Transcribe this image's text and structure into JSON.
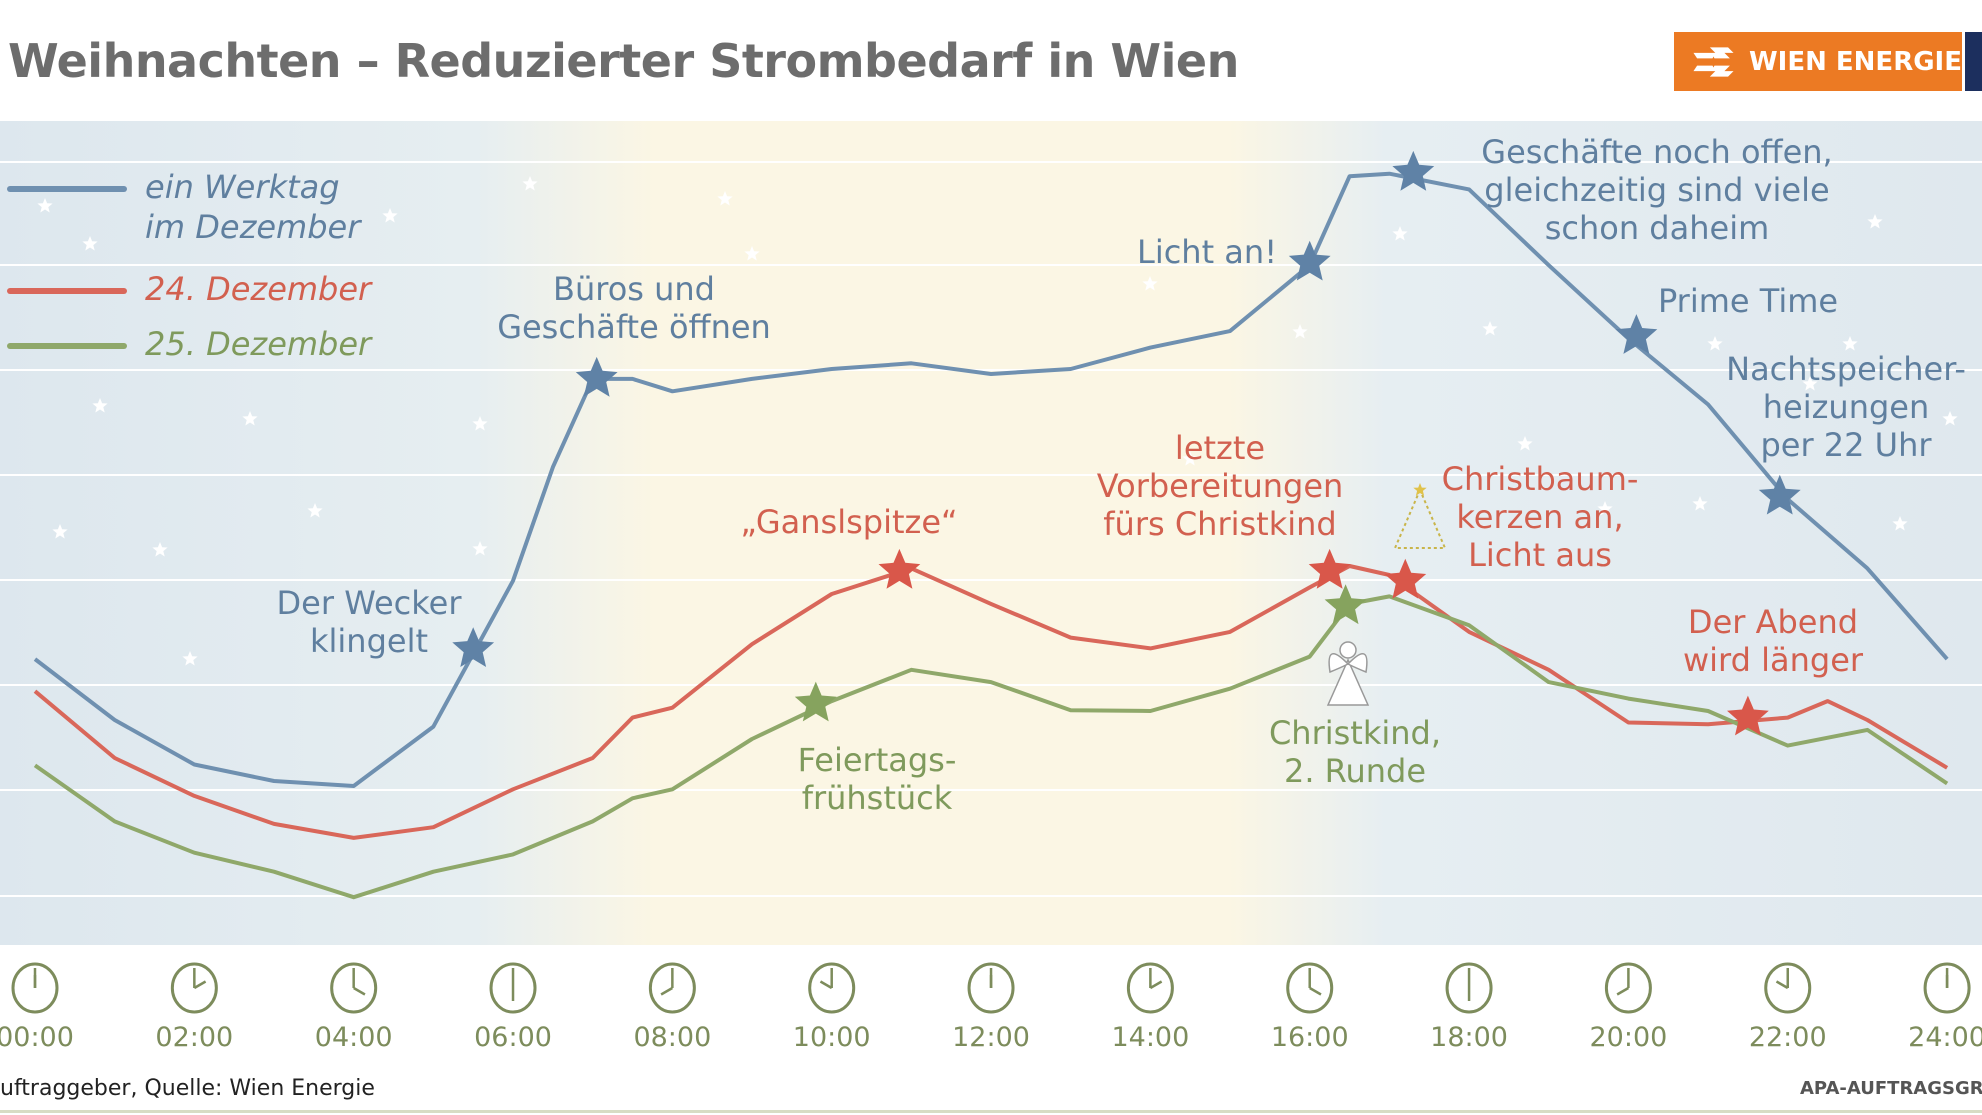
{
  "title": "Weihnachten – Reduzierter Strombedarf in Wien",
  "logo": {
    "text": "WIEN ENERGIE",
    "color": "#ec7a23"
  },
  "footer": {
    "source": "uftraggeber, Quelle: Wien Energie",
    "credit": "APA-AUFTRAGSGRA"
  },
  "colors": {
    "werktag": "#6f90b0",
    "dez24": "#d9675a",
    "dez25": "#8fa86a",
    "clock": "#7d8c5c"
  },
  "chart_data": {
    "type": "line",
    "title": "Weihnachten – Reduzierter Strombedarf in Wien",
    "xlabel": "",
    "ylabel": "",
    "x_ticks": [
      "00:00",
      "02:00",
      "04:00",
      "06:00",
      "08:00",
      "10:00",
      "12:00",
      "14:00",
      "16:00",
      "18:00",
      "20:00",
      "22:00",
      "24:00"
    ],
    "xlim": [
      0,
      24
    ],
    "ylim": [
      0,
      100
    ],
    "y_note_unlabeled": true,
    "grid": "horizontal",
    "legend_position": "top-left",
    "series": [
      {
        "name": "ein Werktag im Dezember",
        "name_lines": [
          "ein Werktag",
          "im Dezember"
        ],
        "color": "#6f90b0",
        "x": [
          0,
          1,
          2,
          3,
          4,
          5,
          6,
          6.5,
          7,
          7.5,
          8,
          9,
          10,
          11,
          12,
          13,
          14,
          15,
          16,
          16.5,
          17,
          18,
          19,
          20,
          21,
          22,
          23,
          24
        ],
        "y": [
          34.7,
          27.3,
          21.9,
          19.9,
          19.3,
          26.5,
          44.2,
          58.0,
          68.7,
          68.7,
          67.2,
          68.7,
          69.9,
          70.6,
          69.3,
          69.9,
          72.5,
          74.5,
          82.5,
          93.3,
          93.6,
          91.7,
          82.5,
          73.6,
          65.6,
          54.1,
          45.7,
          34.7
        ]
      },
      {
        "name": "24. Dezember",
        "name_lines": [
          "24. Dezember"
        ],
        "color": "#d9675a",
        "x": [
          0,
          1,
          2,
          3,
          4,
          5,
          6,
          7,
          7.5,
          8,
          9,
          10,
          11,
          12,
          13,
          14,
          15,
          16,
          16.5,
          17,
          18,
          19,
          20,
          21,
          22,
          22.5,
          23,
          24
        ],
        "y": [
          30.8,
          22.7,
          18.1,
          14.7,
          13.0,
          14.3,
          18.9,
          22.7,
          27.6,
          28.8,
          36.5,
          42.6,
          45.7,
          41.4,
          37.3,
          36.0,
          38.0,
          43.4,
          46.0,
          44.9,
          38.0,
          33.4,
          27.0,
          26.8,
          27.6,
          29.6,
          27.3,
          21.5
        ]
      },
      {
        "name": "25. Dezember",
        "name_lines": [
          "25. Dezember"
        ],
        "color": "#8fa86a",
        "x": [
          0,
          1,
          2,
          3,
          4,
          5,
          6,
          7,
          7.5,
          8,
          9,
          10,
          11,
          12,
          13,
          14,
          15,
          16,
          16.5,
          17,
          18,
          19,
          20,
          21,
          22,
          23,
          24
        ],
        "y": [
          21.8,
          15.0,
          11.2,
          8.9,
          5.8,
          8.9,
          11.0,
          15.0,
          17.8,
          18.9,
          25.0,
          29.6,
          33.4,
          31.9,
          28.5,
          28.4,
          31.1,
          35.0,
          41.4,
          42.3,
          38.8,
          31.9,
          29.9,
          28.4,
          24.2,
          26.1,
          19.6
        ]
      }
    ],
    "annotations": [
      {
        "series": 0,
        "x": 5.5,
        "y": 35.9,
        "lines": [
          "Der Wecker",
          "klingelt"
        ]
      },
      {
        "series": 0,
        "x": 7.05,
        "y": 68.7,
        "lines": [
          "Büros und",
          "Geschäfte öffnen"
        ]
      },
      {
        "series": 0,
        "x": 16.0,
        "y": 82.8,
        "lines": [
          "Licht an!"
        ]
      },
      {
        "series": 0,
        "x": 17.3,
        "y": 93.7,
        "lines": [
          "Geschäfte noch offen,",
          "gleichzeitig sind viele",
          "schon daheim"
        ]
      },
      {
        "series": 0,
        "x": 20.1,
        "y": 73.9,
        "lines": [
          "Prime Time"
        ]
      },
      {
        "series": 0,
        "x": 21.9,
        "y": 54.4,
        "lines": [
          "Nachtspeicher-",
          "heizungen",
          "per 22 Uhr"
        ]
      },
      {
        "series": 1,
        "x": 10.85,
        "y": 45.4,
        "lines": [
          "„Ganslspitze“"
        ]
      },
      {
        "series": 1,
        "x": 16.25,
        "y": 45.4,
        "lines": [
          "letzte",
          "Vorbereitungen",
          "fürs Christkind"
        ]
      },
      {
        "series": 1,
        "x": 17.2,
        "y": 44.2,
        "lines": [
          "Christbaum-",
          "kerzen an,",
          "Licht aus"
        ]
      },
      {
        "series": 1,
        "x": 21.5,
        "y": 27.6,
        "lines": [
          "Der Abend",
          "wird länger"
        ]
      },
      {
        "series": 2,
        "x": 9.8,
        "y": 29.3,
        "lines": [
          "Feiertags-",
          "frühstück"
        ]
      },
      {
        "series": 2,
        "x": 16.45,
        "y": 41.1,
        "lines": [
          "Christkind,",
          "2. Runde"
        ]
      }
    ],
    "icons": [
      "christmas-tree-icon",
      "angel-icon",
      "clock-icon",
      "star-marker-icon"
    ]
  }
}
